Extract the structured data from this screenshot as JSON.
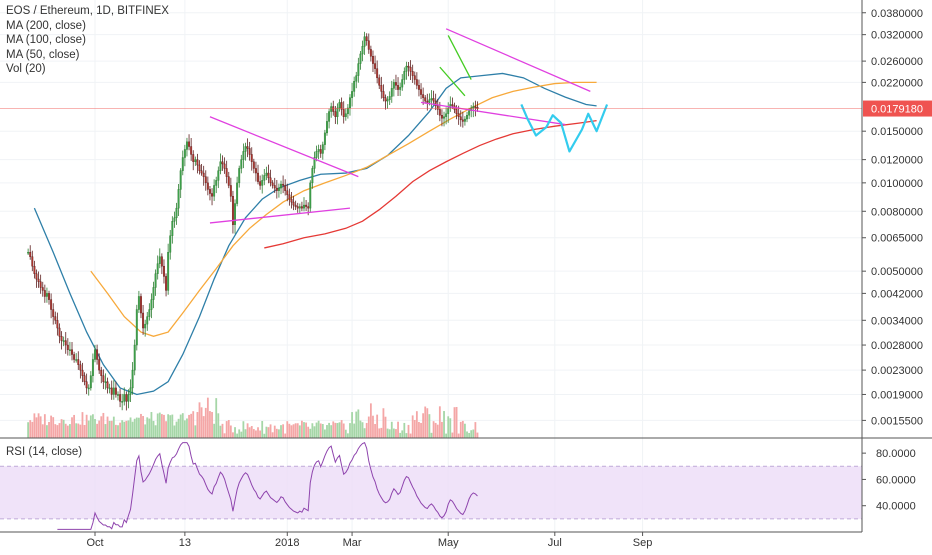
{
  "chart_data": {
    "type": "candlestick",
    "title": "EOS / Ethereum, 1D, BITFINEX",
    "indicators": [
      "MA (200, close)",
      "MA (100, close)",
      "MA (50, close)",
      "Vol (20)"
    ],
    "rsi_label": "RSI (14, close)",
    "price_axis": {
      "scale": "log",
      "range": [
        0.00135,
        0.042
      ],
      "ticks": [
        {
          "v": 0.038,
          "label": "0.0380000"
        },
        {
          "v": 0.032,
          "label": "0.0320000"
        },
        {
          "v": 0.026,
          "label": "0.0260000"
        },
        {
          "v": 0.022,
          "label": "0.0220000"
        },
        {
          "v": 0.015,
          "label": "0.0150000"
        },
        {
          "v": 0.012,
          "label": "0.0120000"
        },
        {
          "v": 0.01,
          "label": "0.0100000"
        },
        {
          "v": 0.008,
          "label": "0.0080000"
        },
        {
          "v": 0.0065,
          "label": "0.0065000"
        },
        {
          "v": 0.005,
          "label": "0.0050000"
        },
        {
          "v": 0.0042,
          "label": "0.0042000"
        },
        {
          "v": 0.0034,
          "label": "0.0034000"
        },
        {
          "v": 0.0028,
          "label": "0.0028000"
        },
        {
          "v": 0.0023,
          "label": "0.0023000"
        },
        {
          "v": 0.0019,
          "label": "0.0019000"
        },
        {
          "v": 0.00155,
          "label": "0.0015500"
        }
      ],
      "current": {
        "v": 0.017918,
        "label": "0.0179180"
      }
    },
    "rsi_axis": {
      "range": [
        20,
        90
      ],
      "ticks": [
        {
          "v": 80,
          "label": "80.0000"
        },
        {
          "v": 60,
          "label": "60.0000"
        },
        {
          "v": 40,
          "label": "40.0000"
        }
      ],
      "band": [
        30,
        70
      ]
    },
    "x_axis": {
      "ticks": [
        {
          "day": 0,
          "label": "Oct"
        },
        {
          "day": 43,
          "label": "13"
        },
        {
          "day": 92,
          "label": "2018"
        },
        {
          "day": 123,
          "label": "Mar"
        },
        {
          "day": 169,
          "label": "May"
        },
        {
          "day": 220,
          "label": "Jul"
        },
        {
          "day": 262,
          "label": "Sep"
        }
      ]
    },
    "ma_series": [
      {
        "name": "MA (50, close)",
        "color": "#2e7fa8",
        "points": [
          [
            -29,
            0.0082
          ],
          [
            -20,
            0.0058
          ],
          [
            -12,
            0.0042
          ],
          [
            -4,
            0.0031
          ],
          [
            4,
            0.0024
          ],
          [
            12,
            0.002
          ],
          [
            20,
            0.0019
          ],
          [
            28,
            0.00195
          ],
          [
            35,
            0.0021
          ],
          [
            42,
            0.0026
          ],
          [
            50,
            0.0035
          ],
          [
            57,
            0.0047
          ],
          [
            64,
            0.0061
          ],
          [
            72,
            0.0076
          ],
          [
            80,
            0.0088
          ],
          [
            88,
            0.0096
          ],
          [
            98,
            0.0102
          ],
          [
            108,
            0.0107
          ],
          [
            120,
            0.0108
          ],
          [
            130,
            0.0112
          ],
          [
            140,
            0.0124
          ],
          [
            150,
            0.0145
          ],
          [
            160,
            0.0175
          ],
          [
            168,
            0.021
          ],
          [
            175,
            0.0228
          ],
          [
            185,
            0.0232
          ],
          [
            195,
            0.0236
          ],
          [
            205,
            0.0228
          ],
          [
            215,
            0.021
          ],
          [
            225,
            0.0196
          ],
          [
            235,
            0.0185
          ],
          [
            240,
            0.0183
          ]
        ]
      },
      {
        "name": "MA (100, close)",
        "color": "#f7a93b",
        "points": [
          [
            -2,
            0.005
          ],
          [
            6,
            0.0042
          ],
          [
            14,
            0.0035
          ],
          [
            22,
            0.0031
          ],
          [
            28,
            0.003
          ],
          [
            35,
            0.0031
          ],
          [
            42,
            0.0036
          ],
          [
            50,
            0.0043
          ],
          [
            58,
            0.0051
          ],
          [
            66,
            0.0061
          ],
          [
            74,
            0.007
          ],
          [
            82,
            0.0078
          ],
          [
            90,
            0.0086
          ],
          [
            100,
            0.0094
          ],
          [
            110,
            0.01
          ],
          [
            120,
            0.0106
          ],
          [
            130,
            0.0113
          ],
          [
            140,
            0.0124
          ],
          [
            150,
            0.0136
          ],
          [
            160,
            0.015
          ],
          [
            170,
            0.0165
          ],
          [
            180,
            0.018
          ],
          [
            190,
            0.0195
          ],
          [
            200,
            0.0205
          ],
          [
            210,
            0.0212
          ],
          [
            220,
            0.0218
          ],
          [
            230,
            0.022
          ],
          [
            240,
            0.022
          ]
        ]
      },
      {
        "name": "MA (200, close)",
        "color": "#e53935",
        "points": [
          [
            81,
            0.006
          ],
          [
            90,
            0.0062
          ],
          [
            100,
            0.0065
          ],
          [
            110,
            0.0067
          ],
          [
            120,
            0.007
          ],
          [
            128,
            0.0074
          ],
          [
            136,
            0.0081
          ],
          [
            144,
            0.009
          ],
          [
            152,
            0.0101
          ],
          [
            160,
            0.011
          ],
          [
            168,
            0.0118
          ],
          [
            176,
            0.0126
          ],
          [
            184,
            0.0134
          ],
          [
            192,
            0.0141
          ],
          [
            200,
            0.0147
          ],
          [
            210,
            0.0152
          ],
          [
            220,
            0.0156
          ],
          [
            232,
            0.016
          ],
          [
            240,
            0.0163
          ]
        ]
      }
    ],
    "annotations": [
      {
        "name": "triangle-1-upper",
        "color": "#e040e0",
        "points": [
          [
            55,
            0.0168
          ],
          [
            126,
            0.0105
          ]
        ]
      },
      {
        "name": "triangle-1-lower",
        "color": "#e040e0",
        "points": [
          [
            55,
            0.0073
          ],
          [
            122,
            0.0082
          ]
        ]
      },
      {
        "name": "triangle-2-upper",
        "color": "#e040e0",
        "points": [
          [
            168,
            0.0335
          ],
          [
            237,
            0.0205
          ]
        ]
      },
      {
        "name": "triangle-2-lower",
        "color": "#e040e0",
        "points": [
          [
            156,
            0.0188
          ],
          [
            225,
            0.0158
          ]
        ]
      },
      {
        "name": "flag-upper",
        "color": "#44cc22",
        "points": [
          [
            169,
            0.0318
          ],
          [
            180,
            0.0225
          ]
        ]
      },
      {
        "name": "flag-lower",
        "color": "#44cc22",
        "points": [
          [
            165,
            0.0248
          ],
          [
            177,
            0.0198
          ]
        ]
      },
      {
        "name": "projection-path",
        "color": "#33ccee",
        "points": [
          [
            204,
            0.0185
          ],
          [
            207,
            0.0165
          ],
          [
            211,
            0.0145
          ],
          [
            216,
            0.0155
          ],
          [
            219,
            0.017
          ],
          [
            223,
            0.016
          ],
          [
            227,
            0.0128
          ],
          [
            233,
            0.0152
          ],
          [
            236,
            0.0172
          ],
          [
            240,
            0.015
          ],
          [
            245,
            0.0185
          ]
        ]
      }
    ],
    "price_data": {
      "start_day": -32,
      "closes": [
        0.0058,
        0.0056,
        0.0052,
        0.0049,
        0.0047,
        0.0046,
        0.0044,
        0.0043,
        0.0041,
        0.0042,
        0.004,
        0.0037,
        0.0035,
        0.0034,
        0.0032,
        0.003,
        0.0029,
        0.0029,
        0.0028,
        0.0027,
        0.0027,
        0.0026,
        0.0025,
        0.0025,
        0.0024,
        0.0023,
        0.0022,
        0.0021,
        0.002,
        0.002,
        0.0022,
        0.0025,
        0.0027,
        0.0025,
        0.0023,
        0.0022,
        0.0021,
        0.0021,
        0.002,
        0.002,
        0.0019,
        0.002,
        0.0019,
        0.0019,
        0.0018,
        0.0018,
        0.0019,
        0.0018,
        0.0019,
        0.002,
        0.0023,
        0.0028,
        0.0037,
        0.0041,
        0.0036,
        0.0032,
        0.0033,
        0.0035,
        0.0037,
        0.004,
        0.0044,
        0.0049,
        0.0053,
        0.0056,
        0.0052,
        0.0048,
        0.0043,
        0.0058,
        0.0066,
        0.0074,
        0.0076,
        0.0082,
        0.0095,
        0.011,
        0.0122,
        0.013,
        0.0138,
        0.0133,
        0.0125,
        0.0118,
        0.012,
        0.0115,
        0.011,
        0.0108,
        0.0105,
        0.01,
        0.0095,
        0.0092,
        0.009,
        0.0098,
        0.0102,
        0.011,
        0.0118,
        0.0116,
        0.0112,
        0.0105,
        0.0098,
        0.009,
        0.0072,
        0.0085,
        0.01,
        0.0112,
        0.012,
        0.0128,
        0.0133,
        0.0131,
        0.0125,
        0.0118,
        0.0112,
        0.0108,
        0.0101,
        0.0098,
        0.0102,
        0.0106,
        0.0108,
        0.0104,
        0.01,
        0.0098,
        0.0096,
        0.0094,
        0.0096,
        0.0099,
        0.0098,
        0.0094,
        0.0091,
        0.0088,
        0.0086,
        0.0084,
        0.0083,
        0.0082,
        0.0083,
        0.0082,
        0.0084,
        0.0083,
        0.0082,
        0.01,
        0.0112,
        0.0122,
        0.0128,
        0.013,
        0.0126,
        0.0135,
        0.0148,
        0.0162,
        0.0175,
        0.0182,
        0.0175,
        0.0168,
        0.018,
        0.0188,
        0.0178,
        0.0168,
        0.0172,
        0.018,
        0.0195,
        0.0205,
        0.0222,
        0.0232,
        0.0255,
        0.0275,
        0.0292,
        0.0315,
        0.0305,
        0.0285,
        0.027,
        0.0255,
        0.0245,
        0.0228,
        0.0215,
        0.0205,
        0.0195,
        0.019,
        0.0192,
        0.0197,
        0.021,
        0.022,
        0.0215,
        0.0208,
        0.0212,
        0.0225,
        0.024,
        0.025,
        0.0248,
        0.024,
        0.0232,
        0.0225,
        0.0215,
        0.0208,
        0.02,
        0.0195,
        0.019,
        0.0188,
        0.0192,
        0.0194,
        0.019,
        0.0183,
        0.0178,
        0.017,
        0.0166,
        0.0168,
        0.0172,
        0.018,
        0.0185,
        0.0183,
        0.0178,
        0.0172,
        0.0168,
        0.0164,
        0.0162,
        0.0165,
        0.017,
        0.0176,
        0.018,
        0.0182,
        0.0181,
        0.0179
      ]
    }
  }
}
